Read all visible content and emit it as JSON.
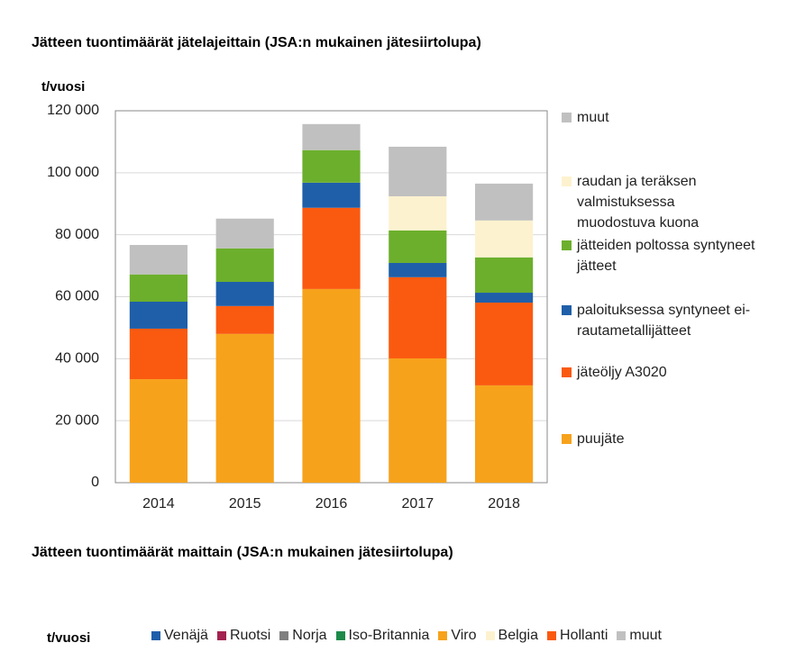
{
  "chart_data": [
    {
      "type": "bar",
      "stacked": true,
      "title": "Jätteen tuontimäärät jätelajeittain (JSA:n mukainen jätesiirtolupa)",
      "y_label": "t/vuosi",
      "categories": [
        "2014",
        "2015",
        "2016",
        "2017",
        "2018"
      ],
      "series": [
        {
          "name": "puujäte",
          "color": "#f7a21b",
          "values": [
            33400,
            48000,
            62500,
            40100,
            31400
          ]
        },
        {
          "name": "jäteöljy A3020",
          "color": "#fa5a10",
          "values": [
            16300,
            9000,
            26200,
            26200,
            26700
          ]
        },
        {
          "name": "paloituksessa syntyneet ei-rautametallijätteet",
          "color": "#1f5fa9",
          "values": [
            8700,
            7800,
            8100,
            4600,
            3200
          ]
        },
        {
          "name": "jätteiden poltossa syntyneet jätteet",
          "color": "#6caf2c",
          "values": [
            8800,
            10800,
            10500,
            10500,
            11400
          ]
        },
        {
          "name": "raudan ja teräksen valmistuksessa muodostuva kuona",
          "color": "#fdf2cf",
          "values": [
            0,
            0,
            0,
            11000,
            11900
          ]
        },
        {
          "name": "muut",
          "color": "#c0c0c0",
          "values": [
            9500,
            9600,
            8400,
            16000,
            11900
          ]
        }
      ],
      "ylim": [
        0,
        120000
      ],
      "yticks": [
        0,
        {
          "value": 20000,
          "label": "20 000"
        },
        {
          "value": 40000,
          "label": "40 000"
        },
        {
          "value": 60000,
          "label": "60 000"
        },
        {
          "value": 80000,
          "label": "80 000"
        },
        {
          "value": 100000,
          "label": "100 000"
        },
        {
          "value": 120000,
          "label": "120 000"
        }
      ],
      "grid": true,
      "legend": "right"
    },
    {
      "type": "bar",
      "stacked": true,
      "title": "Jätteen tuontimäärät maittain (JSA:n mukainen jätesiirtolupa)",
      "y_label": "t/vuosi",
      "series": [
        {
          "name": "Venäjä",
          "color": "#1f5fa9"
        },
        {
          "name": "Ruotsi",
          "color": "#a3224f"
        },
        {
          "name": "Norja",
          "color": "#808080"
        },
        {
          "name": "Iso-Britannia",
          "color": "#1d8a4a"
        },
        {
          "name": "Viro",
          "color": "#f7a21b"
        },
        {
          "name": "Belgia",
          "color": "#fdf2cf"
        },
        {
          "name": "Hollanti",
          "color": "#fa5a10"
        },
        {
          "name": "muut",
          "color": "#c0c0c0"
        }
      ],
      "legend": "top"
    }
  ]
}
